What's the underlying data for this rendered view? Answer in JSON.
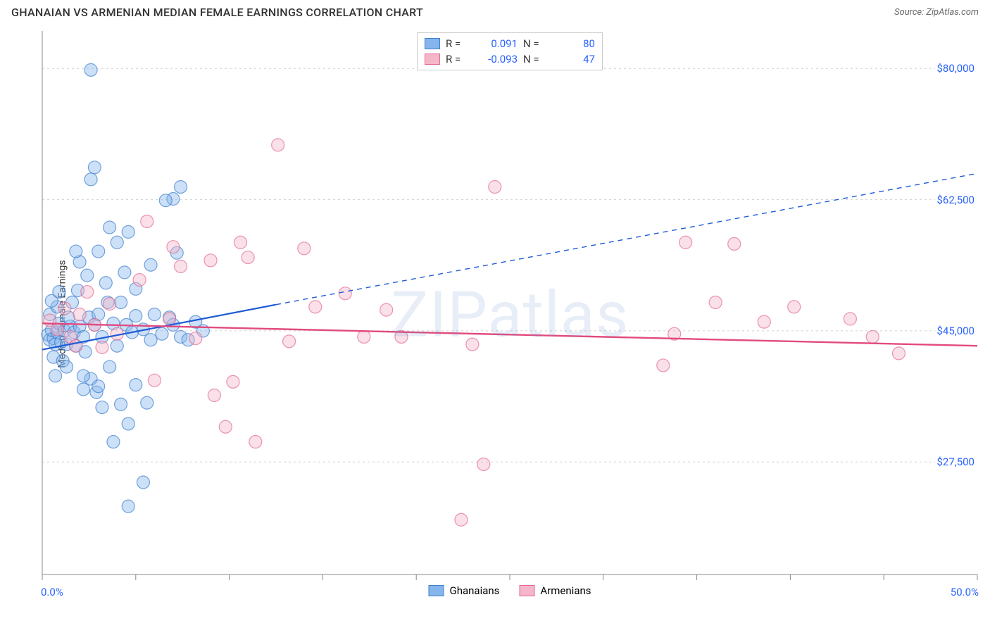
{
  "title": "GHANAIAN VS ARMENIAN MEDIAN FEMALE EARNINGS CORRELATION CHART",
  "source": "Source: ZipAtlas.com",
  "watermark": "ZIPatlas",
  "y_axis_title": "Median Female Earnings",
  "chart": {
    "type": "scatter",
    "background_color": "#ffffff",
    "grid_color": "#d0d0d0",
    "axis_color": "#888888",
    "x": {
      "min": 0,
      "max": 50,
      "label_min": "0.0%",
      "label_max": "50.0%",
      "label_color": "#2962ff",
      "tick_step": 5
    },
    "y": {
      "min": 12500,
      "max": 85000,
      "ticks": [
        27500,
        45000,
        62500,
        80000
      ],
      "tick_labels": [
        "$27,500",
        "$45,000",
        "$62,500",
        "$80,000"
      ],
      "label_color": "#2962ff"
    },
    "marker_radius": 9,
    "marker_opacity": 0.42,
    "series": [
      {
        "id": "ghanaians",
        "label": "Ghanaians",
        "color_fill": "#85b5ec",
        "color_stroke": "#3f7fcf",
        "R": "0.091",
        "N": "80",
        "trend": {
          "solid_from": [
            0,
            42500
          ],
          "solid_to": [
            12.5,
            48500
          ],
          "dash_to": [
            50,
            66000
          ],
          "color": "#1e5bd6",
          "width": 2.2
        },
        "points": [
          [
            0.3,
            44500
          ],
          [
            0.4,
            43800
          ],
          [
            0.6,
            44000
          ],
          [
            0.5,
            45100
          ],
          [
            0.7,
            43200
          ],
          [
            0.8,
            44800
          ],
          [
            1.0,
            43500
          ],
          [
            0.9,
            46000
          ],
          [
            0.4,
            47200
          ],
          [
            1.2,
            45000
          ],
          [
            0.6,
            41500
          ],
          [
            1.3,
            43200
          ],
          [
            1.5,
            45600
          ],
          [
            0.8,
            48200
          ],
          [
            0.5,
            49000
          ],
          [
            1.1,
            41000
          ],
          [
            1.4,
            46800
          ],
          [
            1.7,
            44800
          ],
          [
            0.9,
            50200
          ],
          [
            0.7,
            39000
          ],
          [
            1.8,
            43000
          ],
          [
            2.0,
            45600
          ],
          [
            1.6,
            48800
          ],
          [
            2.2,
            44200
          ],
          [
            1.3,
            40200
          ],
          [
            2.5,
            46800
          ],
          [
            1.9,
            50400
          ],
          [
            2.8,
            45800
          ],
          [
            2.3,
            42200
          ],
          [
            3.0,
            47200
          ],
          [
            2.6,
            38600
          ],
          [
            3.2,
            44200
          ],
          [
            3.5,
            48800
          ],
          [
            2.9,
            36800
          ],
          [
            3.8,
            46000
          ],
          [
            3.4,
            51400
          ],
          [
            4.0,
            43000
          ],
          [
            3.6,
            40200
          ],
          [
            4.2,
            48800
          ],
          [
            4.5,
            45800
          ],
          [
            2.0,
            54200
          ],
          [
            2.4,
            52400
          ],
          [
            3.0,
            55600
          ],
          [
            4.8,
            44800
          ],
          [
            5.0,
            47000
          ],
          [
            4.4,
            52800
          ],
          [
            5.4,
            45200
          ],
          [
            5.8,
            43800
          ],
          [
            3.2,
            34800
          ],
          [
            5.0,
            50600
          ],
          [
            6.0,
            47200
          ],
          [
            4.0,
            56800
          ],
          [
            6.4,
            44600
          ],
          [
            2.2,
            39000
          ],
          [
            6.8,
            46800
          ],
          [
            5.6,
            35400
          ],
          [
            4.6,
            32600
          ],
          [
            7.0,
            45800
          ],
          [
            1.8,
            55600
          ],
          [
            7.4,
            44200
          ],
          [
            3.8,
            30200
          ],
          [
            2.6,
            79800
          ],
          [
            2.8,
            66800
          ],
          [
            2.6,
            65200
          ],
          [
            4.6,
            58200
          ],
          [
            7.0,
            62600
          ],
          [
            7.4,
            64200
          ],
          [
            6.6,
            62400
          ],
          [
            7.2,
            55400
          ],
          [
            7.8,
            43800
          ],
          [
            8.2,
            46200
          ],
          [
            8.6,
            45000
          ],
          [
            2.2,
            37200
          ],
          [
            3.0,
            37600
          ],
          [
            4.2,
            35200
          ],
          [
            5.0,
            37800
          ],
          [
            5.4,
            24800
          ],
          [
            4.6,
            21600
          ],
          [
            3.6,
            58800
          ],
          [
            5.8,
            53800
          ]
        ]
      },
      {
        "id": "armenians",
        "label": "Armenians",
        "color_fill": "#f4b6c8",
        "color_stroke": "#e46a92",
        "R": "-0.093",
        "N": "47",
        "trend": {
          "solid_from": [
            0,
            46000
          ],
          "solid_to": [
            50,
            43000
          ],
          "dash_to": null,
          "color": "#e24a7e",
          "width": 2.4
        },
        "points": [
          [
            0.4,
            46400
          ],
          [
            0.8,
            45200
          ],
          [
            1.2,
            48000
          ],
          [
            1.5,
            44200
          ],
          [
            2.0,
            47200
          ],
          [
            1.8,
            43000
          ],
          [
            2.4,
            50200
          ],
          [
            2.8,
            45800
          ],
          [
            3.2,
            42800
          ],
          [
            3.6,
            48600
          ],
          [
            4.0,
            44600
          ],
          [
            5.2,
            51800
          ],
          [
            6.8,
            46600
          ],
          [
            6.0,
            38400
          ],
          [
            7.4,
            53600
          ],
          [
            8.2,
            44000
          ],
          [
            5.6,
            59600
          ],
          [
            7.0,
            56200
          ],
          [
            9.2,
            36400
          ],
          [
            10.2,
            38200
          ],
          [
            11.0,
            54800
          ],
          [
            12.6,
            69800
          ],
          [
            14.6,
            48200
          ],
          [
            16.2,
            50000
          ],
          [
            17.2,
            44200
          ],
          [
            18.4,
            47800
          ],
          [
            9.8,
            32200
          ],
          [
            11.4,
            30200
          ],
          [
            23.0,
            43200
          ],
          [
            24.2,
            64200
          ],
          [
            23.6,
            27200
          ],
          [
            22.4,
            19800
          ],
          [
            34.4,
            56800
          ],
          [
            36.0,
            48800
          ],
          [
            33.8,
            44600
          ],
          [
            33.2,
            40400
          ],
          [
            38.6,
            46200
          ],
          [
            40.2,
            48200
          ],
          [
            37.0,
            56600
          ],
          [
            43.2,
            46600
          ],
          [
            44.4,
            44200
          ],
          [
            45.8,
            42000
          ],
          [
            13.2,
            43600
          ],
          [
            9.0,
            54400
          ],
          [
            10.6,
            56800
          ],
          [
            14.0,
            56000
          ],
          [
            19.2,
            44200
          ]
        ]
      }
    ]
  },
  "legend_top": {
    "R_label": "R =",
    "N_label": "N ="
  },
  "legend_bottom_labels": [
    "Ghanaians",
    "Armenians"
  ]
}
